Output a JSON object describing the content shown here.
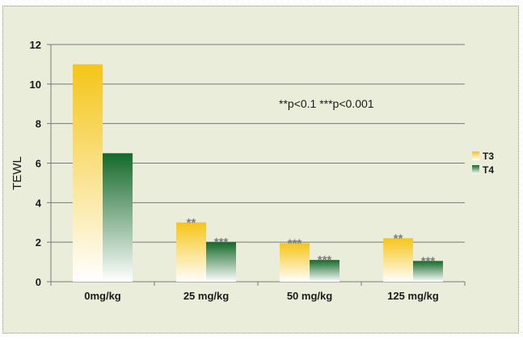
{
  "chart_data": {
    "type": "bar",
    "title": "",
    "xlabel": "",
    "ylabel": "TEWL",
    "ylim": [
      0,
      12
    ],
    "yticks": [
      0,
      2,
      4,
      6,
      8,
      10,
      12
    ],
    "categories": [
      "0mg/kg",
      "25 mg/kg",
      "50 mg/kg",
      "125 mg/kg"
    ],
    "series": [
      {
        "name": "T3",
        "values": [
          11.0,
          3.0,
          1.95,
          2.2
        ],
        "significance": [
          "",
          "**",
          "***",
          "**"
        ],
        "color": "#f5c518"
      },
      {
        "name": "T4",
        "values": [
          6.5,
          2.0,
          1.1,
          1.05
        ],
        "significance": [
          "",
          "***",
          "***",
          "***"
        ],
        "color": "#1a6b2a"
      }
    ],
    "annotation": "**p<0.1 ***p<0.001",
    "grid": true,
    "legend": "right"
  },
  "colors": {
    "background": "#eaedd9",
    "gridline": "#7a7a7a",
    "significance_marks": "#7d7d7d"
  }
}
